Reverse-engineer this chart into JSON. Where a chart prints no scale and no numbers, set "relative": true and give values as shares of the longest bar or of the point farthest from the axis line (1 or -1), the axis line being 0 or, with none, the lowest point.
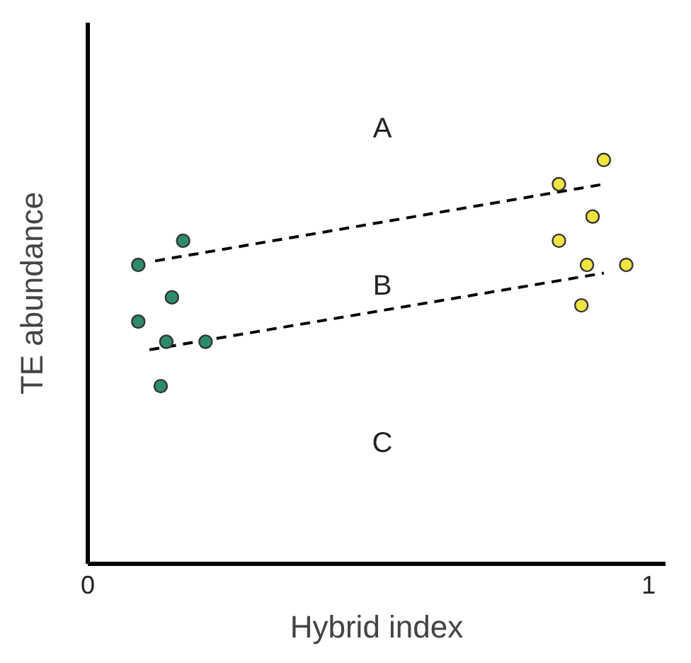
{
  "chart_data": {
    "type": "scatter",
    "relative": true,
    "xlabel": "Hybrid index",
    "ylabel": "TE abundance",
    "xlim": [
      0,
      1.03
    ],
    "xticks": [
      0,
      1
    ],
    "marker": "circle",
    "series": [
      {
        "color": "#2e8b6a",
        "x": [
          0.09,
          0.17,
          0.15,
          0.09,
          0.14,
          0.21,
          0.13
        ],
        "values": [
          0.74,
          0.8,
          0.66,
          0.6,
          0.55,
          0.55,
          0.44
        ]
      },
      {
        "color": "#f0e442",
        "x": [
          0.92,
          0.84,
          0.9,
          0.84,
          0.89,
          0.96,
          0.88
        ],
        "values": [
          1.0,
          0.94,
          0.86,
          0.8,
          0.74,
          0.74,
          0.64
        ]
      },
      {
        "type": "line",
        "color": "#000000",
        "line_style": "dashed",
        "marker": "none",
        "x": [
          0.12,
          0.92
        ],
        "values": [
          0.75,
          0.94
        ]
      },
      {
        "type": "line",
        "color": "#000000",
        "line_style": "dashed",
        "marker": "none",
        "x": [
          0.11,
          0.92
        ],
        "values": [
          0.53,
          0.72
        ]
      }
    ],
    "annotations": [
      "A",
      "B",
      "C"
    ]
  }
}
